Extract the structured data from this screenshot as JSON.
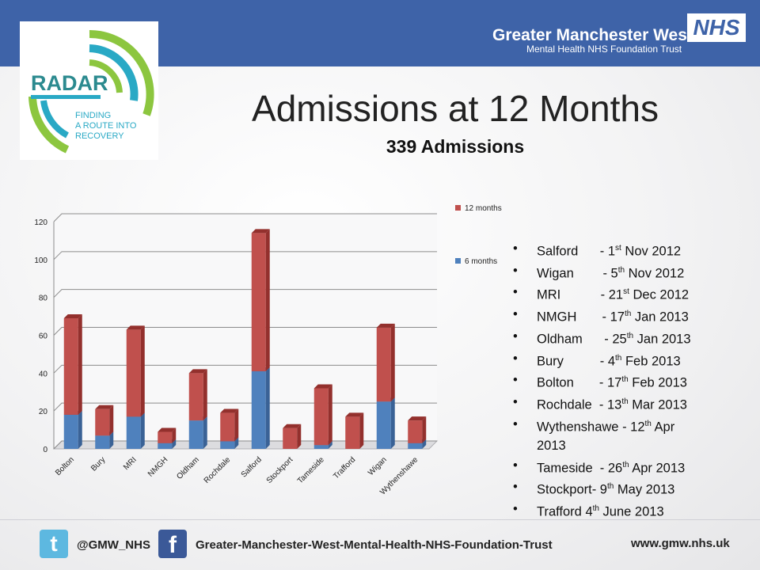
{
  "header": {
    "org_name": "Greater Manchester West",
    "org_sub": "Mental Health NHS Foundation Trust",
    "nhs_logo": "NHS"
  },
  "logo": {
    "name": "RADAR",
    "line1": "FINDING",
    "line2": "A ROUTE INTO",
    "line3": "RECOVERY"
  },
  "title": "Admissions at 12 Months",
  "subtitle": "339 Admissions",
  "chart_data": {
    "type": "bar",
    "stacked": true,
    "categories": [
      "Bolton",
      "Bury",
      "MRI",
      "NMGH",
      "Oldham",
      "Rochdale",
      "Salford",
      "Stockport",
      "Tameside",
      "Trafford",
      "Wigan",
      "Wythenshawe"
    ],
    "series": [
      {
        "name": "6 months",
        "values": [
          18,
          7,
          17,
          3,
          15,
          4,
          41,
          0,
          2,
          0,
          25,
          3
        ],
        "color": "#4f81bd"
      },
      {
        "name": "12 months",
        "values": [
          51,
          14,
          46,
          6,
          25,
          15,
          73,
          11,
          30,
          17,
          39,
          12
        ],
        "color": "#c0504d"
      }
    ],
    "ylim": [
      0,
      120
    ],
    "yticks": [
      0,
      20,
      40,
      60,
      80,
      100,
      120
    ],
    "grid": true,
    "legend_position": "right"
  },
  "go_live_dates": [
    {
      "site": "Salford",
      "sep": "      - ",
      "day": "1",
      "suffix": "st",
      "rest": " Nov 2012"
    },
    {
      "site": "Wigan",
      "sep": "        - ",
      "day": "5",
      "suffix": "th",
      "rest": " Nov 2012"
    },
    {
      "site": "MRI",
      "sep": "           - ",
      "day": "21",
      "suffix": "st",
      "rest": " Dec 2012"
    },
    {
      "site": "NMGH",
      "sep": "       - ",
      "day": "17",
      "suffix": "th",
      "rest": " Jan 2013"
    },
    {
      "site": "Oldham",
      "sep": "      - ",
      "day": "25",
      "suffix": "th",
      "rest": " Jan 2013"
    },
    {
      "site": "Bury",
      "sep": "          - ",
      "day": "4",
      "suffix": "th",
      "rest": " Feb 2013"
    },
    {
      "site": "Bolton",
      "sep": "       - ",
      "day": "17",
      "suffix": "th",
      "rest": " Feb 2013"
    },
    {
      "site": "Rochdale",
      "sep": "  - ",
      "day": "13",
      "suffix": "th",
      "rest": " Mar 2013"
    },
    {
      "site": "Wythenshawe",
      "sep": " - ",
      "day": "12",
      "suffix": "th",
      "rest": " Apr"
    },
    {
      "site": "",
      "sep": "",
      "day": "",
      "suffix": "",
      "rest": "2013"
    },
    {
      "site": "Tameside",
      "sep": "  - ",
      "day": "26",
      "suffix": "th",
      "rest": " Apr 2013"
    },
    {
      "site": "Stockport",
      "sep": "- ",
      "day": "9",
      "suffix": "th",
      "rest": " May 2013"
    },
    {
      "site": "Trafford",
      "sep": " ",
      "day": "4",
      "suffix": "th",
      "rest": " June 2013"
    }
  ],
  "footer": {
    "twitter_icon": "t",
    "twitter_handle": "@GMW_NHS",
    "facebook_icon": "f",
    "facebook_page": "Greater-Manchester-West-Mental-Health-NHS-Foundation-Trust",
    "website": "www.gmw.nhs.uk"
  },
  "icons": {
    "twitter": "twitter-icon",
    "facebook": "facebook-icon",
    "bullet": "•"
  },
  "colors": {
    "header_bar": "#3e63a8",
    "series_6_months": "#4f81bd",
    "series_12_months": "#c0504d",
    "logo_green": "#8cc63f",
    "logo_teal": "#29a9c5"
  }
}
